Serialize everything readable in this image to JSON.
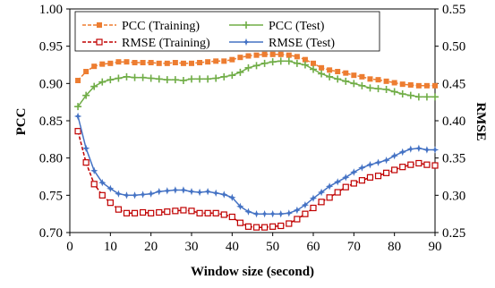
{
  "chart_data": {
    "type": "line",
    "x": [
      2,
      4,
      6,
      8,
      10,
      12,
      14,
      16,
      18,
      20,
      22,
      24,
      26,
      28,
      30,
      32,
      34,
      36,
      38,
      40,
      42,
      44,
      46,
      48,
      50,
      52,
      54,
      56,
      58,
      60,
      62,
      64,
      66,
      68,
      70,
      72,
      74,
      76,
      78,
      80,
      82,
      84,
      86,
      88,
      90
    ],
    "series": [
      {
        "name": "PCC (Training)",
        "axis": "left",
        "color": "#ED7D31",
        "marker": "square-filled",
        "line": "dashed",
        "values": [
          0.904,
          0.916,
          0.923,
          0.926,
          0.927,
          0.929,
          0.929,
          0.928,
          0.928,
          0.928,
          0.927,
          0.927,
          0.928,
          0.927,
          0.927,
          0.928,
          0.929,
          0.93,
          0.93,
          0.932,
          0.935,
          0.937,
          0.938,
          0.939,
          0.939,
          0.939,
          0.938,
          0.936,
          0.932,
          0.927,
          0.921,
          0.918,
          0.916,
          0.914,
          0.911,
          0.909,
          0.906,
          0.905,
          0.903,
          0.901,
          0.899,
          0.898,
          0.897,
          0.897,
          0.897
        ]
      },
      {
        "name": "PCC (Test)",
        "axis": "left",
        "color": "#70AD47",
        "marker": "plus",
        "line": "solid",
        "values": [
          0.869,
          0.884,
          0.896,
          0.902,
          0.905,
          0.907,
          0.909,
          0.908,
          0.908,
          0.907,
          0.906,
          0.905,
          0.905,
          0.904,
          0.906,
          0.906,
          0.906,
          0.907,
          0.909,
          0.911,
          0.915,
          0.921,
          0.924,
          0.927,
          0.929,
          0.93,
          0.93,
          0.927,
          0.925,
          0.919,
          0.913,
          0.909,
          0.906,
          0.903,
          0.9,
          0.897,
          0.894,
          0.893,
          0.892,
          0.889,
          0.886,
          0.884,
          0.882,
          0.882,
          0.882
        ]
      },
      {
        "name": "RMSE (Training)",
        "axis": "right",
        "color": "#C00000",
        "marker": "square-open",
        "line": "dashed",
        "values": [
          0.386,
          0.344,
          0.315,
          0.3,
          0.29,
          0.281,
          0.276,
          0.276,
          0.277,
          0.276,
          0.277,
          0.278,
          0.279,
          0.28,
          0.279,
          0.276,
          0.276,
          0.276,
          0.274,
          0.271,
          0.263,
          0.258,
          0.257,
          0.257,
          0.258,
          0.259,
          0.262,
          0.268,
          0.275,
          0.283,
          0.291,
          0.297,
          0.304,
          0.311,
          0.316,
          0.32,
          0.324,
          0.326,
          0.33,
          0.334,
          0.338,
          0.341,
          0.343,
          0.341,
          0.34
        ]
      },
      {
        "name": "RMSE (Test)",
        "axis": "right",
        "color": "#4472C4",
        "marker": "star",
        "line": "solid",
        "values": [
          0.406,
          0.363,
          0.333,
          0.317,
          0.309,
          0.302,
          0.3,
          0.3,
          0.301,
          0.302,
          0.305,
          0.306,
          0.307,
          0.307,
          0.305,
          0.304,
          0.305,
          0.303,
          0.301,
          0.297,
          0.285,
          0.278,
          0.275,
          0.275,
          0.275,
          0.275,
          0.276,
          0.28,
          0.287,
          0.296,
          0.304,
          0.312,
          0.318,
          0.324,
          0.331,
          0.337,
          0.341,
          0.344,
          0.347,
          0.353,
          0.358,
          0.362,
          0.363,
          0.361,
          0.361
        ]
      }
    ],
    "xlabel": "Window size (second)",
    "ylabel": "PCC",
    "y2label": "RMSE",
    "xlim": [
      0,
      90
    ],
    "ylim": [
      0.7,
      1.0
    ],
    "y2lim": [
      0.25,
      0.55
    ],
    "xticks": [
      "0",
      "10",
      "20",
      "30",
      "40",
      "50",
      "60",
      "70",
      "80",
      "90"
    ],
    "yticks": [
      "0.70",
      "0.75",
      "0.80",
      "0.85",
      "0.90",
      "0.95",
      "1.00"
    ],
    "y2ticks": [
      "0.25",
      "0.30",
      "0.35",
      "0.40",
      "0.45",
      "0.50",
      "0.55"
    ],
    "grid": false,
    "legend": "top-left inside, two columns"
  }
}
